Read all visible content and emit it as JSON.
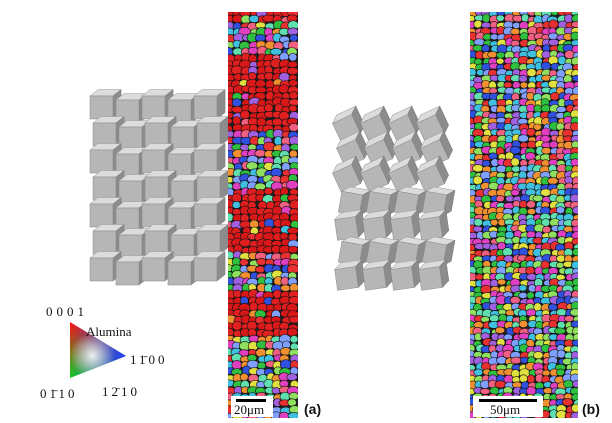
{
  "figure": {
    "legend": {
      "top": "0001",
      "material": "Alumina",
      "right": "11̄00",
      "bottom_left": "01̄10",
      "bottom_right": "12̄10"
    },
    "panels": [
      {
        "scale_bar": "20μm",
        "label": "(a)"
      },
      {
        "scale_bar": "50μm",
        "label": "(b)"
      }
    ]
  }
}
